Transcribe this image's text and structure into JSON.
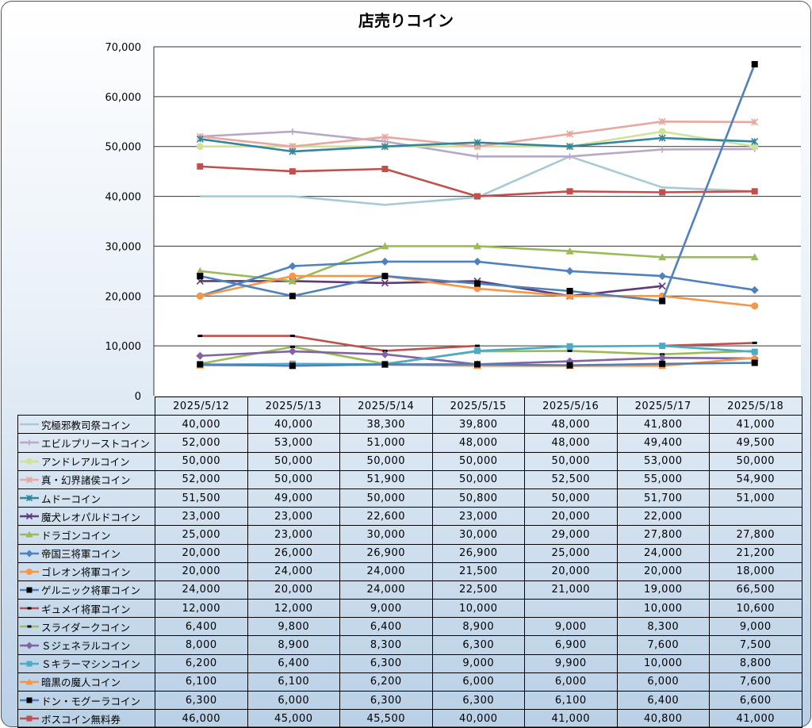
{
  "chart_data": {
    "type": "line",
    "title": "店売りコイン",
    "categories": [
      "2025/5/12",
      "2025/5/13",
      "2025/5/14",
      "2025/5/15",
      "2025/5/16",
      "2025/5/17",
      "2025/5/18"
    ],
    "y_ticks": [
      "0",
      "10,000",
      "20,000",
      "30,000",
      "40,000",
      "50,000",
      "60,000",
      "70,000"
    ],
    "ylim": [
      0,
      70000
    ],
    "grid": true,
    "legend": "data-table",
    "series": [
      {
        "name": "究極邪教司祭コイン",
        "color": "#a8cad6",
        "marker": "none",
        "values": [
          40000,
          40000,
          38300,
          39800,
          48000,
          41800,
          41000
        ],
        "labels": [
          "40,000",
          "40,000",
          "38,300",
          "39,800",
          "48,000",
          "41,800",
          "41,000"
        ]
      },
      {
        "name": "エビルプリーストコイン",
        "color": "#b8a8c8",
        "marker": "plus",
        "values": [
          52000,
          53000,
          51000,
          48000,
          48000,
          49400,
          49500
        ],
        "labels": [
          "52,000",
          "53,000",
          "51,000",
          "48,000",
          "48,000",
          "49,400",
          "49,500"
        ]
      },
      {
        "name": "アンドレアルコイン",
        "color": "#d3e29a",
        "marker": "circle",
        "values": [
          50000,
          50000,
          50000,
          50000,
          50000,
          53000,
          50000
        ],
        "labels": [
          "50,000",
          "50,000",
          "50,000",
          "50,000",
          "50,000",
          "53,000",
          "50,000"
        ]
      },
      {
        "name": "真・幻界諸侯コイン",
        "color": "#e6a8a0",
        "marker": "star",
        "values": [
          52000,
          50000,
          51900,
          50000,
          52500,
          55000,
          54900
        ],
        "labels": [
          "52,000",
          "50,000",
          "51,900",
          "50,000",
          "52,500",
          "55,000",
          "54,900"
        ]
      },
      {
        "name": "ムドーコイン",
        "color": "#31859c",
        "marker": "star",
        "values": [
          51500,
          49000,
          50000,
          50800,
          50000,
          51700,
          51000
        ],
        "labels": [
          "51,500",
          "49,000",
          "50,000",
          "50,800",
          "50,000",
          "51,700",
          "51,000"
        ]
      },
      {
        "name": "魔犬レオパルドコイン",
        "color": "#5e3a7a",
        "marker": "x",
        "values": [
          23000,
          23000,
          22600,
          23000,
          20000,
          22000,
          null
        ],
        "labels": [
          "23,000",
          "23,000",
          "22,600",
          "23,000",
          "20,000",
          "22,000",
          ""
        ]
      },
      {
        "name": "ドラゴンコイン",
        "color": "#9bbb59",
        "marker": "triangle",
        "values": [
          25000,
          23000,
          30000,
          30000,
          29000,
          27800,
          27800
        ],
        "labels": [
          "25,000",
          "23,000",
          "30,000",
          "30,000",
          "29,000",
          "27,800",
          "27,800"
        ]
      },
      {
        "name": "帝国三将軍コイン",
        "color": "#4f81bd",
        "marker": "diamond",
        "values": [
          20000,
          26000,
          26900,
          26900,
          25000,
          24000,
          21200
        ],
        "labels": [
          "20,000",
          "26,000",
          "26,900",
          "26,900",
          "25,000",
          "24,000",
          "21,200"
        ]
      },
      {
        "name": "ゴレオン将軍コイン",
        "color": "#f79646",
        "marker": "circle",
        "values": [
          20000,
          24000,
          24000,
          21500,
          20000,
          20000,
          18000
        ],
        "labels": [
          "20,000",
          "24,000",
          "24,000",
          "21,500",
          "20,000",
          "20,000",
          "18,000"
        ]
      },
      {
        "name": "ゲルニック将軍コイン",
        "color": "#4f81bd",
        "marker": "square-black",
        "values": [
          24000,
          20000,
          24000,
          22500,
          21000,
          19000,
          66500
        ],
        "labels": [
          "24,000",
          "20,000",
          "24,000",
          "22,500",
          "21,000",
          "19,000",
          "66,500"
        ]
      },
      {
        "name": "ギュメイ将軍コイン",
        "color": "#c0504d",
        "marker": "dash",
        "values": [
          12000,
          12000,
          9000,
          10000,
          null,
          10000,
          10600
        ],
        "labels": [
          "12,000",
          "12,000",
          "9,000",
          "10,000",
          "",
          "10,000",
          "10,600"
        ]
      },
      {
        "name": "スライダークコイン",
        "color": "#9bbb59",
        "marker": "dash",
        "values": [
          6400,
          9800,
          6400,
          8900,
          9000,
          8300,
          9000
        ],
        "labels": [
          "6,400",
          "9,800",
          "6,400",
          "8,900",
          "9,000",
          "8,300",
          "9,000"
        ]
      },
      {
        "name": "Ｓジェネラルコイン",
        "color": "#8064a2",
        "marker": "diamond",
        "values": [
          8000,
          8900,
          8300,
          6300,
          6900,
          7600,
          7500
        ],
        "labels": [
          "8,000",
          "8,900",
          "8,300",
          "6,300",
          "6,900",
          "7,600",
          "7,500"
        ]
      },
      {
        "name": "Ｓキラーマシンコイン",
        "color": "#4bacc6",
        "marker": "square",
        "values": [
          6200,
          6400,
          6300,
          9000,
          9900,
          10000,
          8800
        ],
        "labels": [
          "6,200",
          "6,400",
          "6,300",
          "9,000",
          "9,900",
          "10,000",
          "8,800"
        ]
      },
      {
        "name": "暗黒の魔人コイン",
        "color": "#f79646",
        "marker": "triangle",
        "values": [
          6100,
          6100,
          6200,
          6000,
          6000,
          6000,
          7600
        ],
        "labels": [
          "6,100",
          "6,100",
          "6,200",
          "6,000",
          "6,000",
          "6,000",
          "7,600"
        ]
      },
      {
        "name": "ドン・モグーラコイン",
        "color": "#4f81bd",
        "marker": "square-black",
        "values": [
          6300,
          6000,
          6300,
          6300,
          6100,
          6400,
          6600
        ],
        "labels": [
          "6,300",
          "6,000",
          "6,300",
          "6,300",
          "6,100",
          "6,400",
          "6,600"
        ]
      },
      {
        "name": "ボスコイン無料券",
        "color": "#c0504d",
        "marker": "square",
        "values": [
          46000,
          45000,
          45500,
          40000,
          41000,
          40800,
          41000
        ],
        "labels": [
          "46,000",
          "45,000",
          "45,500",
          "40,000",
          "41,000",
          "40,800",
          "41,000"
        ]
      }
    ]
  }
}
